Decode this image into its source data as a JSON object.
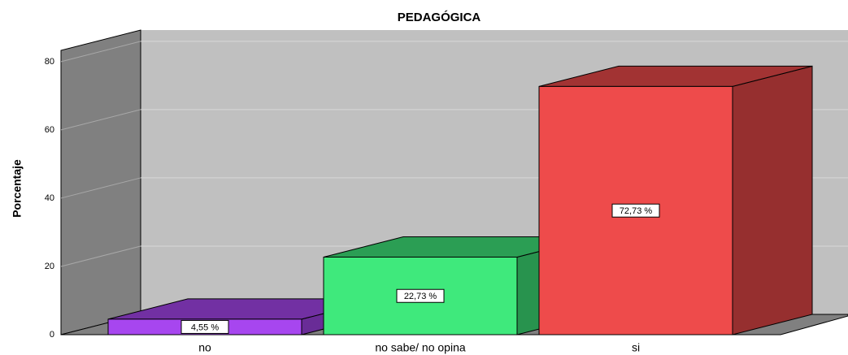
{
  "chart_data": {
    "type": "bar3d",
    "title": "PEDAGÓGICA",
    "y_label": "Porcentaje",
    "categories": [
      "no",
      "no sabe/ no opina",
      "si"
    ],
    "values": [
      4.55,
      22.73,
      72.73
    ],
    "value_labels": [
      "4,55 %",
      "22,73 %",
      "72,73 %"
    ],
    "colors": [
      "#a746ef",
      "#3fe97c",
      "#ee4b4b"
    ],
    "ylim": [
      0,
      83.3
    ],
    "yticks": [
      0,
      20,
      40,
      60,
      80
    ],
    "grid": true
  }
}
